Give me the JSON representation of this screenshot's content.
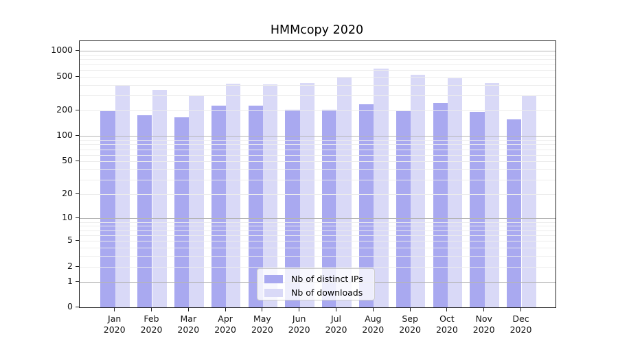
{
  "chart_data": {
    "type": "bar",
    "title": "HMMcopy 2020",
    "categories": [
      "Jan 2020",
      "Feb 2020",
      "Mar 2020",
      "Apr 2020",
      "May 2020",
      "Jun 2020",
      "Jul 2020",
      "Aug 2020",
      "Sep 2020",
      "Oct 2020",
      "Nov 2020",
      "Dec 2020"
    ],
    "months": [
      "Jan",
      "Feb",
      "Mar",
      "Apr",
      "May",
      "Jun",
      "Jul",
      "Aug",
      "Sep",
      "Oct",
      "Nov",
      "Dec"
    ],
    "year_label": "2020",
    "series": [
      {
        "name": "Nb of distinct IPs",
        "color": "#a9a9f0",
        "values": [
          200,
          178,
          168,
          230,
          229,
          206,
          205,
          236,
          198,
          245,
          193,
          158
        ]
      },
      {
        "name": "Nb of downloads",
        "color": "#d9d9f7",
        "values": [
          398,
          350,
          300,
          418,
          408,
          420,
          490,
          618,
          525,
          480,
          424,
          295
        ]
      }
    ],
    "xlabel": "",
    "ylabel": "",
    "y_scale": "log1p",
    "y_ticks": [
      0,
      1,
      2,
      5,
      10,
      20,
      50,
      100,
      200,
      500,
      1000
    ],
    "ylim": [
      0,
      1300
    ],
    "grid": "horizontal, minor + major decades",
    "legend_position": "inside bottom-center",
    "colors": {
      "major_gridline": "#b5b5b5",
      "minor_gridline": "#ececec",
      "axis_frame": "#1a1a1a",
      "text": "#111111",
      "background": "#ffffff"
    }
  }
}
